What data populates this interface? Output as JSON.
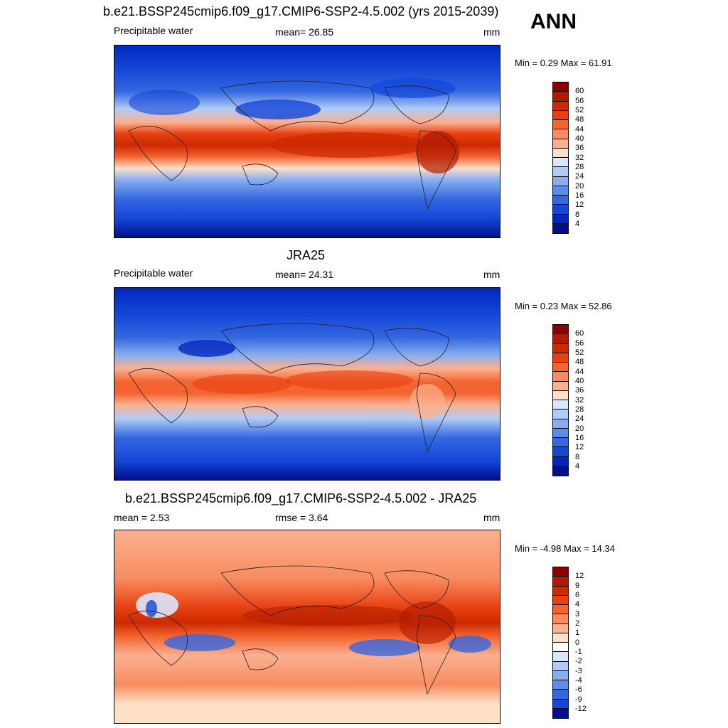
{
  "season": "ANN",
  "panels": [
    {
      "title": "b.e21.BSSP245cmip6.f09_g17.CMIP6-SSP2-4.5.002 (yrs 2015-2039)",
      "left_label": "Precipitable water",
      "center_label": "mean=  26.85",
      "units": "mm",
      "minmax": "Min =   0.29 Max =  61.91",
      "colorbar": {
        "labels": [
          "60",
          "56",
          "52",
          "48",
          "44",
          "40",
          "36",
          "32",
          "28",
          "24",
          "20",
          "16",
          "12",
          "8",
          "4"
        ],
        "colors": [
          "#8b0000",
          "#b01a00",
          "#cc2a00",
          "#e84010",
          "#f46430",
          "#f88c60",
          "#fbb090",
          "#fde0c8",
          "#d8e8fa",
          "#b0ccf6",
          "#88aef0",
          "#5a8ce8",
          "#3468e0",
          "#1446d8",
          "#0028c0",
          "#00108c"
        ]
      }
    },
    {
      "title": "JRA25",
      "left_label": "Precipitable water",
      "center_label": "mean=  24.31",
      "units": "mm",
      "minmax": "Min =   0.23 Max =  52.86",
      "colorbar": {
        "labels": [
          "60",
          "56",
          "52",
          "48",
          "44",
          "40",
          "36",
          "32",
          "28",
          "24",
          "20",
          "16",
          "12",
          "8",
          "4"
        ],
        "colors": [
          "#8b0000",
          "#b01a00",
          "#cc2a00",
          "#e84010",
          "#f46430",
          "#f88c60",
          "#fbb090",
          "#fde0c8",
          "#d8e8fa",
          "#b0ccf6",
          "#88aef0",
          "#5a8ce8",
          "#3468e0",
          "#1446d8",
          "#0028c0",
          "#00108c"
        ]
      }
    },
    {
      "title": "b.e21.BSSP245cmip6.f09_g17.CMIP6-SSP2-4.5.002 - JRA25",
      "left_label": "mean =   2.53",
      "center_label": "rmse =   3.64",
      "units": "mm",
      "minmax": "Min =  -4.98 Max =  14.34",
      "colorbar": {
        "labels": [
          "12",
          "9",
          "6",
          "4",
          "3",
          "2",
          "1",
          "0",
          "-1",
          "-2",
          "-3",
          "-4",
          "-6",
          "-9",
          "-12"
        ],
        "colors": [
          "#8b0000",
          "#b01a00",
          "#cc2a00",
          "#e84010",
          "#f46430",
          "#f88c60",
          "#fbb090",
          "#fde0c8",
          "#ffffff",
          "#d8e8fa",
          "#b0ccf6",
          "#88aef0",
          "#5a8ce8",
          "#3468e0",
          "#1446d8",
          "#00108c"
        ]
      }
    }
  ]
}
